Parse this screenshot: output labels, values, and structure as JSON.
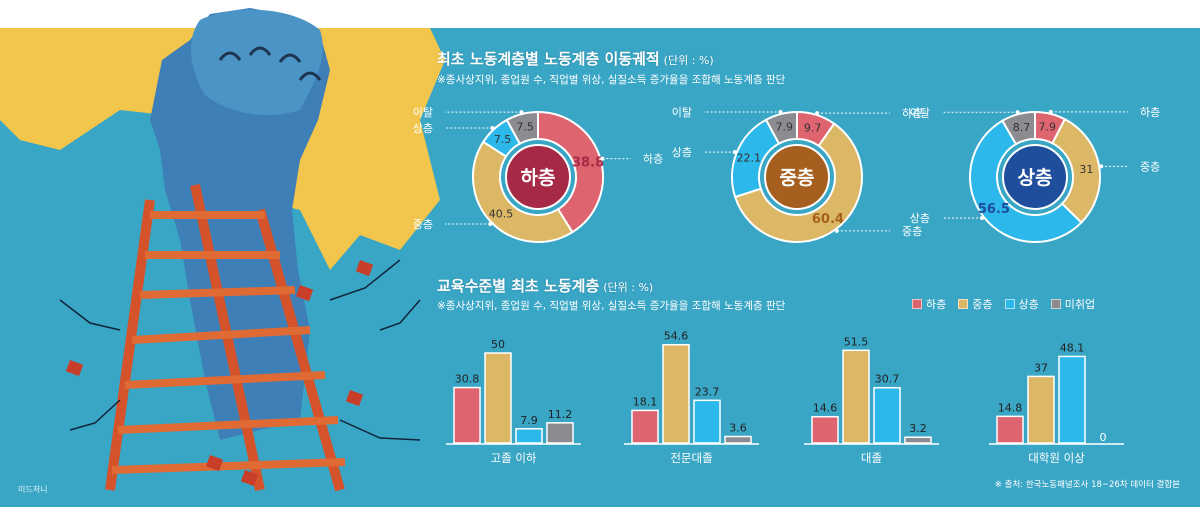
{
  "section1": {
    "title": "최초 노동계층별 노동계층 이동궤적",
    "unit": "(단위 : %)",
    "note": "※종사상지위, 종업원 수, 직업별 위상, 실질소득 증가율을 조합해 노동계층 판단"
  },
  "section2": {
    "title": "교육수준별 최초 노동계층",
    "unit": "(단위 : %)",
    "note": "※종사상지위, 종업원 수, 직업별 위상, 실질소득 증가율을 조합해 노동계층 판단"
  },
  "credit": "미드저니",
  "source": "※ 출처: 한국노동패널조사 18~26차 데이터 결합본",
  "colors": {
    "lower": "#de6470",
    "middle": "#dcb866",
    "upper": "#2cb8ea",
    "leave": "#8a8c8f",
    "background": "#39a6c6",
    "illustration_yellow": "#f2c64c"
  },
  "legend": [
    {
      "label": "하층",
      "color": "#de6470"
    },
    {
      "label": "중층",
      "color": "#dcb866"
    },
    {
      "label": "상층",
      "color": "#2cb8ea"
    },
    {
      "label": "미취업",
      "color": "#8a8c8f"
    }
  ],
  "chart_data": [
    {
      "type": "pie",
      "center_label": "하층",
      "center_color": "#a62a46",
      "slices": [
        {
          "label": "하층",
          "value": 38.8,
          "color": "#de6470"
        },
        {
          "label": "중층",
          "value": 40.5,
          "color": "#dcb866"
        },
        {
          "label": "상층",
          "value": 7.5,
          "color": "#2cb8ea"
        },
        {
          "label": "이탈",
          "value": 7.5,
          "color": "#8a8c8f"
        }
      ]
    },
    {
      "type": "pie",
      "center_label": "중층",
      "center_color": "#a65f1e",
      "slices": [
        {
          "label": "하층",
          "value": 9.7,
          "color": "#de6470"
        },
        {
          "label": "중층",
          "value": 60.4,
          "color": "#dcb866"
        },
        {
          "label": "상층",
          "value": 22.1,
          "color": "#2cb8ea"
        },
        {
          "label": "이탈",
          "value": 7.9,
          "color": "#8a8c8f"
        }
      ]
    },
    {
      "type": "pie",
      "center_label": "상층",
      "center_color": "#1f4e9c",
      "slices": [
        {
          "label": "하층",
          "value": 7.9,
          "color": "#de6470"
        },
        {
          "label": "중층",
          "value": 31.0,
          "color": "#dcb866"
        },
        {
          "label": "상층",
          "value": 56.5,
          "color": "#2cb8ea"
        },
        {
          "label": "이탈",
          "value": 8.7,
          "color": "#8a8c8f"
        }
      ]
    },
    {
      "type": "bar",
      "categories": [
        "고졸 이하",
        "전문대졸",
        "대졸",
        "대학원 이상"
      ],
      "series": [
        {
          "name": "하층",
          "values": [
            30.8,
            18.1,
            14.6,
            14.8
          ]
        },
        {
          "name": "중층",
          "values": [
            50.0,
            54.6,
            51.5,
            37.0
          ]
        },
        {
          "name": "상층",
          "values": [
            7.9,
            23.7,
            30.7,
            48.1
          ]
        },
        {
          "name": "미취업",
          "values": [
            11.2,
            3.6,
            3.2,
            0
          ]
        }
      ],
      "ylim": [
        0,
        60
      ]
    }
  ]
}
